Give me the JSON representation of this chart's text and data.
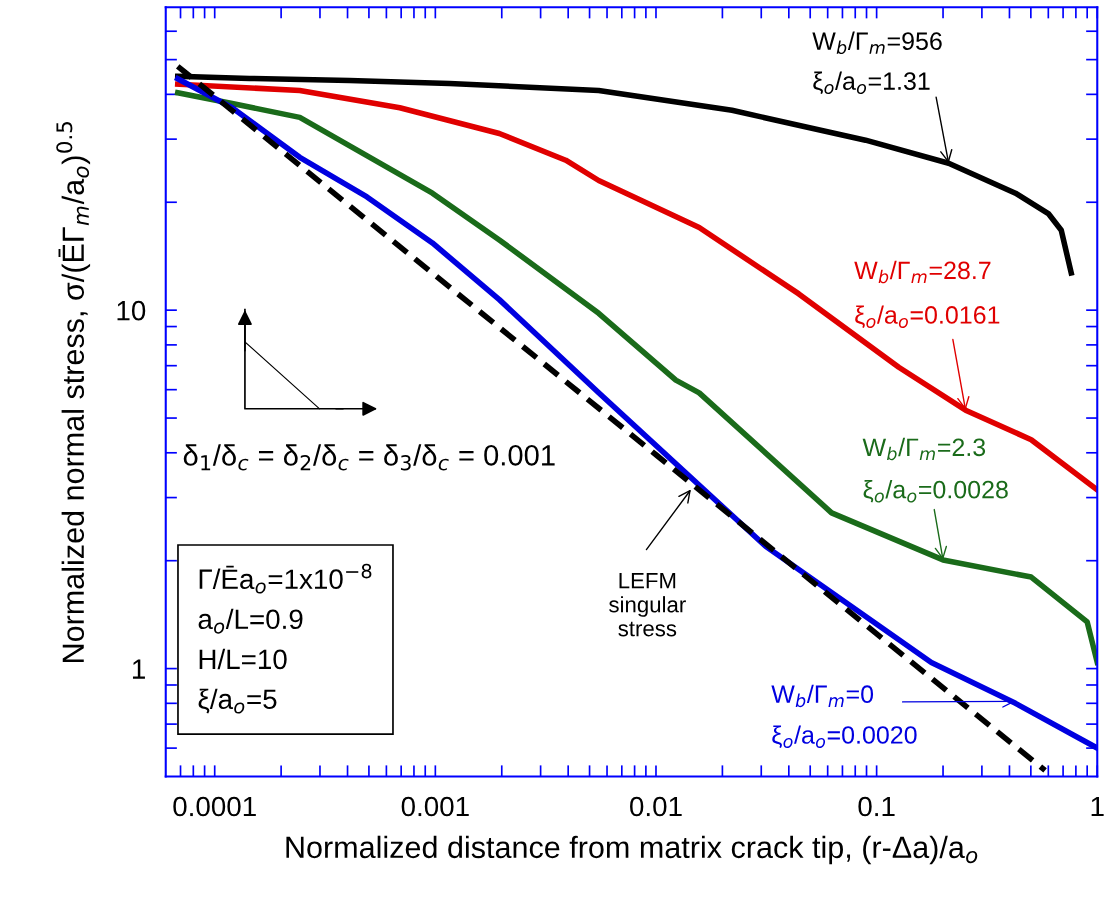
{
  "chart_data": {
    "type": "line",
    "xlabel": "Normalized distance from matrix crack tip, (r-Δa)/a$_{o}$",
    "ylabel": "Normalized normal stress, σ/(ĒΓ$_{m}$/a$_{o}$)$^{0.5}$",
    "log": "xy",
    "xlim": [
      6e-05,
      1
    ],
    "ylim": [
      0.5,
      70
    ],
    "grid": false,
    "marker": "none",
    "line_style": "solid",
    "xticks": [
      {
        "value": 7e-05,
        "label": null
      },
      {
        "value": 8e-05,
        "label": null
      },
      {
        "value": 9e-05,
        "label": null
      },
      0.0001,
      {
        "value": 0.0002,
        "label": null
      },
      {
        "value": 0.0003,
        "label": null
      },
      {
        "value": 0.0004,
        "label": null
      },
      {
        "value": 0.0005,
        "label": null
      },
      {
        "value": 0.0006,
        "label": null
      },
      {
        "value": 0.0007,
        "label": null
      },
      {
        "value": 0.0008,
        "label": null
      },
      {
        "value": 0.0009,
        "label": null
      },
      0.001,
      {
        "value": 0.002,
        "label": null
      },
      {
        "value": 0.003,
        "label": null
      },
      {
        "value": 0.004,
        "label": null
      },
      {
        "value": 0.005,
        "label": null
      },
      {
        "value": 0.006,
        "label": null
      },
      {
        "value": 0.007,
        "label": null
      },
      {
        "value": 0.008,
        "label": null
      },
      {
        "value": 0.009,
        "label": null
      },
      0.01,
      {
        "value": 0.02,
        "label": null
      },
      {
        "value": 0.03,
        "label": null
      },
      {
        "value": 0.04,
        "label": null
      },
      {
        "value": 0.05,
        "label": null
      },
      {
        "value": 0.06,
        "label": null
      },
      {
        "value": 0.07,
        "label": null
      },
      {
        "value": 0.08,
        "label": null
      },
      {
        "value": 0.09,
        "label": null
      },
      0.1,
      {
        "value": 0.2,
        "label": null
      },
      {
        "value": 0.3,
        "label": null
      },
      {
        "value": 0.4,
        "label": null
      },
      {
        "value": 0.5,
        "label": null
      },
      {
        "value": 0.6,
        "label": null
      },
      {
        "value": 0.7,
        "label": null
      },
      {
        "value": 0.8,
        "label": null
      },
      {
        "value": 0.9,
        "label": null
      },
      1
    ],
    "yticks": [
      {
        "value": 0.6,
        "label": null
      },
      {
        "value": 0.7,
        "label": null
      },
      {
        "value": 0.8,
        "label": null
      },
      {
        "value": 0.9,
        "label": null
      },
      1,
      {
        "value": 2,
        "label": null
      },
      {
        "value": 3,
        "label": null
      },
      {
        "value": 4,
        "label": null
      },
      {
        "value": 5,
        "label": null
      },
      {
        "value": 6,
        "label": null
      },
      {
        "value": 7,
        "label": null
      },
      {
        "value": 8,
        "label": null
      },
      {
        "value": 9,
        "label": null
      },
      10,
      {
        "value": 20,
        "label": null
      },
      {
        "value": 30,
        "label": null
      },
      {
        "value": 40,
        "label": null
      },
      {
        "value": 50,
        "label": null
      },
      {
        "value": 60,
        "label": null
      }
    ],
    "series": [
      {
        "color": "#000000",
        "x": [
          6.8e-05,
          0.000144,
          0.000409,
          0.00116,
          0.0055,
          0.0221,
          0.0891,
          0.212,
          0.426,
          0.6,
          0.687,
          0.762
        ],
        "values": [
          44.9,
          44.3,
          43.7,
          42.9,
          41.0,
          36.1,
          29.8,
          25.7,
          21.2,
          18.6,
          16.7,
          12.7
        ]
      },
      {
        "color": "#e00000",
        "x": [
          6.8e-05,
          0.000243,
          0.00069,
          0.00195,
          0.0039,
          0.0055,
          0.0157,
          0.0444,
          0.126,
          0.253,
          0.502,
          1
        ],
        "values": [
          42.7,
          41.0,
          36.7,
          31.1,
          26.2,
          23.0,
          17.0,
          11.1,
          6.93,
          5.26,
          4.35,
          3.15
        ]
      },
      {
        "color": "#1a6b1a",
        "x": [
          6.8e-05,
          0.00012,
          0.000243,
          0.00097,
          0.00195,
          0.0055,
          0.0123,
          0.0157,
          0.0625,
          0.2,
          0.502,
          0.9,
          1
        ],
        "values": [
          40.4,
          37.7,
          34.5,
          21.2,
          15.7,
          9.8,
          6.38,
          5.88,
          2.72,
          2.01,
          1.8,
          1.35,
          1.04
        ]
      },
      {
        "color": "#0000e0",
        "x": [
          6.8e-05,
          0.00012,
          0.000243,
          0.00049,
          0.00097,
          0.00195,
          0.0055,
          0.0315,
          0.177,
          0.426,
          1
        ],
        "values": [
          44.2,
          36.7,
          26.7,
          20.7,
          15.4,
          10.7,
          5.88,
          2.19,
          1.04,
          0.8,
          0.6
        ]
      },
      {
        "color": "#000000",
        "line_style": "dashed",
        "x": [
          6.8e-05,
          0.01,
          0.58
        ],
        "values": [
          47.9,
          3.95,
          0.52
        ]
      }
    ],
    "annotations": [
      "W$_{b}$/Γ$_{m}$=956",
      {
        "text": "ξ$_{o}$/a$_{o}$=1.31",
        "x": 0.212,
        "y": 25.7
      },
      "W$_{b}$/Γ$_{m}$=28.7",
      {
        "text": "ξ$_{o}$/a$_{o}$=0.0161",
        "x": 0.253,
        "y": 5.26
      },
      "W$_{b}$/Γ$_{m}$=2.3",
      {
        "text": "ξ$_{o}$/a$_{o}$=0.0028",
        "x": 0.2,
        "y": 2.01
      },
      "W$_{b}$/Γ$_{m}$=0",
      {
        "text": "ξ$_{o}$/a$_{o}$=0.0020",
        "x": 0.426,
        "y": 0.81
      },
      {
        "text": "LEFM\nsingular\nstress",
        "x": 0.0144,
        "y": 3.16
      },
      "δ$_{1}$/δ$_{c}$ = δ$_{2}$/δ$_{c}$ = δ$_{3}$/δ$_{c}$ = 0.001",
      "Γ/Ēa$_{o}$=1x10$^{−8}$\na$_{o}$/L=0.9\nH/L=10\nξ/a$_{o}$=5"
    ]
  }
}
